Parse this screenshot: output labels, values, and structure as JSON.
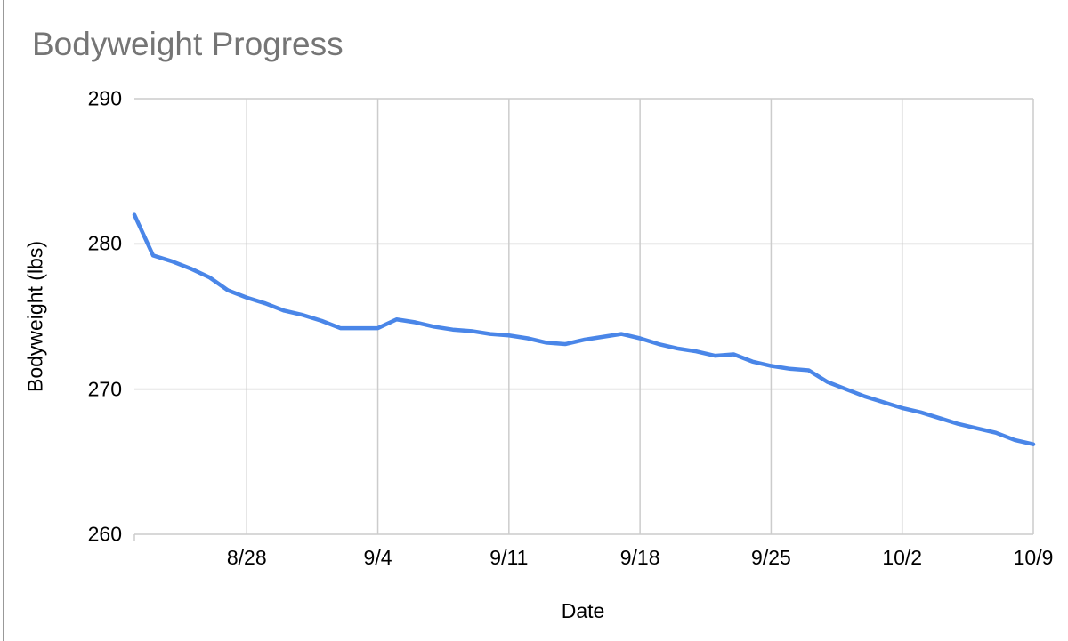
{
  "page": {
    "background": "#ffffff",
    "sheet_border_color": "#999999"
  },
  "chart": {
    "title_color": "#757575",
    "axis_text_color": "#000000",
    "gridline_color": "#cccccc",
    "line_color": "#4a86e8",
    "line_width": 4.5
  },
  "chart_data": {
    "type": "line",
    "title": "Bodyweight Progress",
    "xlabel": "Date",
    "ylabel": "Bodyweight (lbs)",
    "ylim": [
      260,
      290
    ],
    "yticks": [
      290,
      280,
      270,
      260
    ],
    "xticks": [
      "8/28",
      "9/4",
      "9/11",
      "9/18",
      "9/25",
      "10/2",
      "10/9"
    ],
    "grid": true,
    "legend": "none",
    "x": [
      "8/22",
      "8/23",
      "8/24",
      "8/25",
      "8/26",
      "8/27",
      "8/28",
      "8/29",
      "8/30",
      "8/31",
      "9/1",
      "9/2",
      "9/3",
      "9/4",
      "9/5",
      "9/6",
      "9/7",
      "9/8",
      "9/9",
      "9/10",
      "9/11",
      "9/12",
      "9/13",
      "9/14",
      "9/15",
      "9/16",
      "9/17",
      "9/18",
      "9/19",
      "9/20",
      "9/21",
      "9/22",
      "9/23",
      "9/24",
      "9/25",
      "9/26",
      "9/27",
      "9/28",
      "9/29",
      "9/30",
      "10/1",
      "10/2",
      "10/3",
      "10/4",
      "10/5",
      "10/6",
      "10/7",
      "10/8",
      "10/9"
    ],
    "values": [
      282.0,
      279.2,
      278.8,
      278.3,
      277.7,
      276.8,
      276.3,
      275.9,
      275.4,
      275.1,
      274.7,
      274.2,
      274.2,
      274.2,
      274.8,
      274.6,
      274.3,
      274.1,
      274.0,
      273.8,
      273.7,
      273.5,
      273.2,
      273.1,
      273.4,
      273.6,
      273.8,
      273.5,
      273.1,
      272.8,
      272.6,
      272.3,
      272.4,
      271.9,
      271.6,
      271.4,
      271.3,
      270.5,
      270.0,
      269.5,
      269.1,
      268.7,
      268.4,
      268.0,
      267.6,
      267.3,
      267.0,
      266.5,
      266.2
    ]
  }
}
